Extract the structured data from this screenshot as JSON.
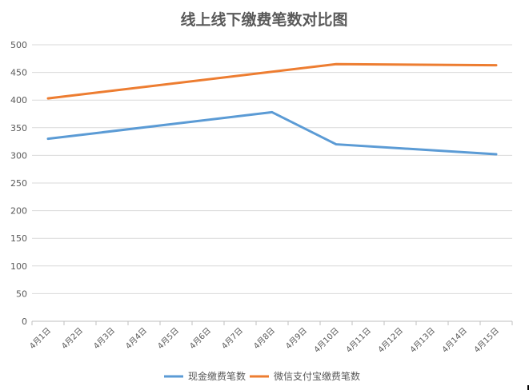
{
  "chart_data": {
    "type": "line",
    "title": "线上线下缴费笔数对比图",
    "xlabel": "",
    "ylabel": "",
    "ylim": [
      0,
      500
    ],
    "yticks": [
      0,
      50,
      100,
      150,
      200,
      250,
      300,
      350,
      400,
      450,
      500
    ],
    "categories": [
      "4月1日",
      "4月2日",
      "4月3日",
      "4月4日",
      "4月5日",
      "4月6日",
      "4月7日",
      "4月8日",
      "4月9日",
      "4月10日",
      "4月11日",
      "4月12日",
      "4月13日",
      "4月14日",
      "4月15日"
    ],
    "series": [
      {
        "name": "现金缴费笔数",
        "color": "#5b9bd5",
        "points": [
          {
            "x": "4月1日",
            "y": 330
          },
          {
            "x": "4月8日",
            "y": 378
          },
          {
            "x": "4月10日",
            "y": 320
          },
          {
            "x": "4月15日",
            "y": 302
          }
        ]
      },
      {
        "name": "微信支付宝缴费笔数",
        "color": "#ed7d31",
        "points": [
          {
            "x": "4月1日",
            "y": 403
          },
          {
            "x": "4月10日",
            "y": 465
          },
          {
            "x": "4月15日",
            "y": 463
          }
        ]
      }
    ],
    "grid": true,
    "legend_position": "bottom"
  }
}
